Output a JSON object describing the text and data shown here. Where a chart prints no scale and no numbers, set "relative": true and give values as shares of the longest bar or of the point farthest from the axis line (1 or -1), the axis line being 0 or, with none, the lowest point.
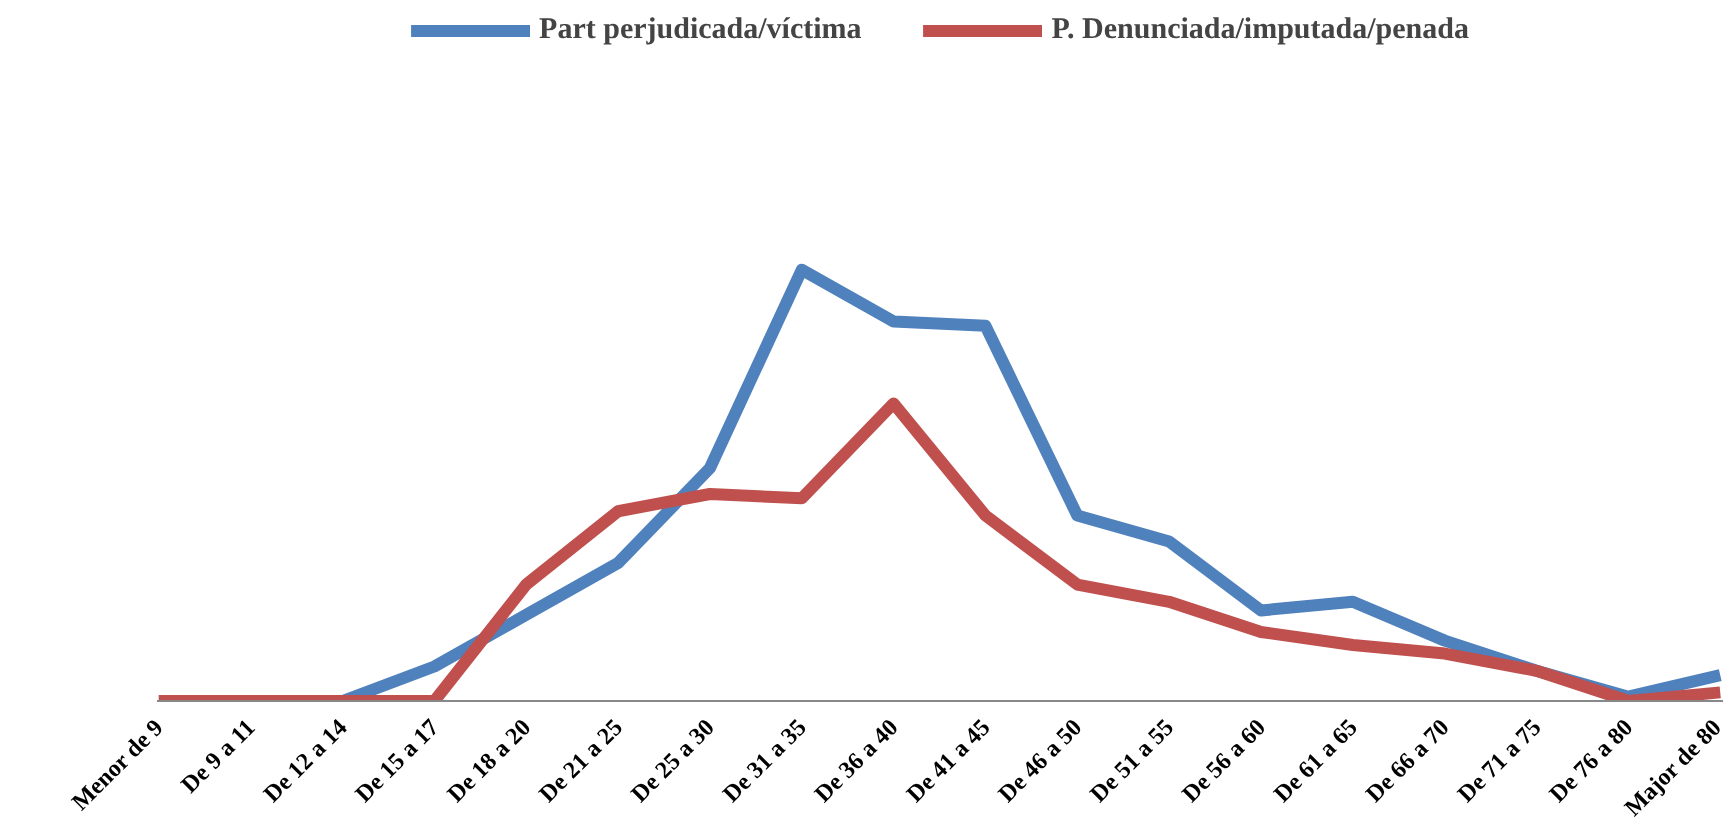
{
  "chart_data": {
    "type": "line",
    "relative": true,
    "legend": "top",
    "categories": [
      "Menor de 9",
      "De 9 a 11",
      "De 12 a 14",
      "De 15 a 17",
      "De 18 a 20",
      "De 21 a 25",
      "De 25 a 30",
      "De 31 a 35",
      "De 36 a 40",
      "De 41 a 45",
      "De 46 a 50",
      "De 51 a 55",
      "De 56 a 60",
      "De 61 a 65",
      "De 66 a 70",
      "De 71 a 75",
      "De 76 a 80",
      "Major de 80"
    ],
    "series": [
      {
        "name": "Part perjudicada/víctima",
        "color": "#4f81bd",
        "values": [
          0,
          0,
          0,
          0.08,
          0.2,
          0.32,
          0.54,
          1,
          0.88,
          0.87,
          0.43,
          0.37,
          0.21,
          0.23,
          0.14,
          0.07,
          0.01,
          0.06
        ]
      },
      {
        "name": "P. Denunciada/imputada/penada",
        "color": "#c0504d",
        "values": [
          0,
          0,
          0,
          0,
          0.27,
          0.44,
          0.48,
          0.47,
          0.69,
          0.43,
          0.27,
          0.23,
          0.16,
          0.13,
          0.11,
          0.07,
          0,
          0.02
        ]
      }
    ]
  }
}
